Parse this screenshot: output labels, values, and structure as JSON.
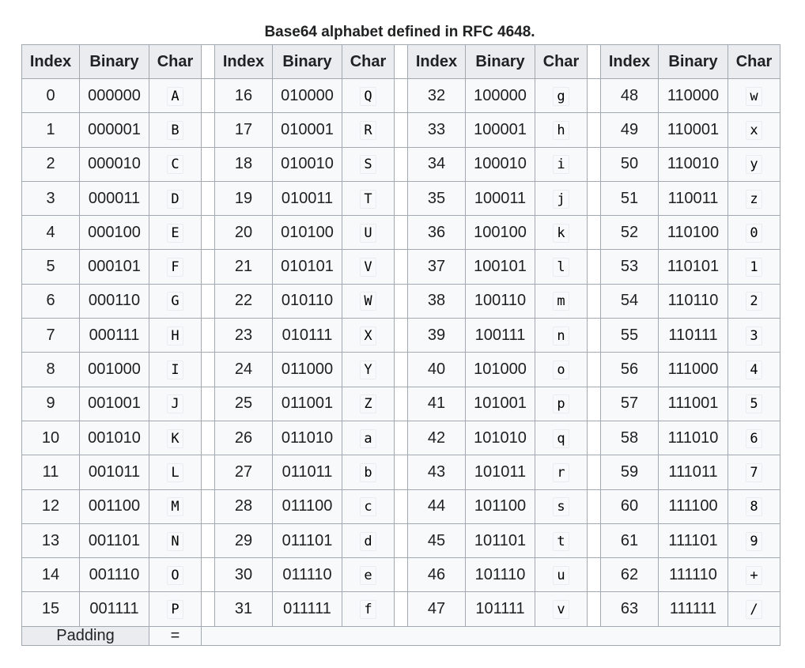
{
  "caption": "Base64 alphabet defined in RFC 4648.",
  "headers": {
    "index": "Index",
    "binary": "Binary",
    "char": "Char"
  },
  "rows": [
    [
      [
        "0",
        "000000",
        "A"
      ],
      [
        "16",
        "010000",
        "Q"
      ],
      [
        "32",
        "100000",
        "g"
      ],
      [
        "48",
        "110000",
        "w"
      ]
    ],
    [
      [
        "1",
        "000001",
        "B"
      ],
      [
        "17",
        "010001",
        "R"
      ],
      [
        "33",
        "100001",
        "h"
      ],
      [
        "49",
        "110001",
        "x"
      ]
    ],
    [
      [
        "2",
        "000010",
        "C"
      ],
      [
        "18",
        "010010",
        "S"
      ],
      [
        "34",
        "100010",
        "i"
      ],
      [
        "50",
        "110010",
        "y"
      ]
    ],
    [
      [
        "3",
        "000011",
        "D"
      ],
      [
        "19",
        "010011",
        "T"
      ],
      [
        "35",
        "100011",
        "j"
      ],
      [
        "51",
        "110011",
        "z"
      ]
    ],
    [
      [
        "4",
        "000100",
        "E"
      ],
      [
        "20",
        "010100",
        "U"
      ],
      [
        "36",
        "100100",
        "k"
      ],
      [
        "52",
        "110100",
        "0"
      ]
    ],
    [
      [
        "5",
        "000101",
        "F"
      ],
      [
        "21",
        "010101",
        "V"
      ],
      [
        "37",
        "100101",
        "l"
      ],
      [
        "53",
        "110101",
        "1"
      ]
    ],
    [
      [
        "6",
        "000110",
        "G"
      ],
      [
        "22",
        "010110",
        "W"
      ],
      [
        "38",
        "100110",
        "m"
      ],
      [
        "54",
        "110110",
        "2"
      ]
    ],
    [
      [
        "7",
        "000111",
        "H"
      ],
      [
        "23",
        "010111",
        "X"
      ],
      [
        "39",
        "100111",
        "n"
      ],
      [
        "55",
        "110111",
        "3"
      ]
    ],
    [
      [
        "8",
        "001000",
        "I"
      ],
      [
        "24",
        "011000",
        "Y"
      ],
      [
        "40",
        "101000",
        "o"
      ],
      [
        "56",
        "111000",
        "4"
      ]
    ],
    [
      [
        "9",
        "001001",
        "J"
      ],
      [
        "25",
        "011001",
        "Z"
      ],
      [
        "41",
        "101001",
        "p"
      ],
      [
        "57",
        "111001",
        "5"
      ]
    ],
    [
      [
        "10",
        "001010",
        "K"
      ],
      [
        "26",
        "011010",
        "a"
      ],
      [
        "42",
        "101010",
        "q"
      ],
      [
        "58",
        "111010",
        "6"
      ]
    ],
    [
      [
        "11",
        "001011",
        "L"
      ],
      [
        "27",
        "011011",
        "b"
      ],
      [
        "43",
        "101011",
        "r"
      ],
      [
        "59",
        "111011",
        "7"
      ]
    ],
    [
      [
        "12",
        "001100",
        "M"
      ],
      [
        "28",
        "011100",
        "c"
      ],
      [
        "44",
        "101100",
        "s"
      ],
      [
        "60",
        "111100",
        "8"
      ]
    ],
    [
      [
        "13",
        "001101",
        "N"
      ],
      [
        "29",
        "011101",
        "d"
      ],
      [
        "45",
        "101101",
        "t"
      ],
      [
        "61",
        "111101",
        "9"
      ]
    ],
    [
      [
        "14",
        "001110",
        "O"
      ],
      [
        "30",
        "011110",
        "e"
      ],
      [
        "46",
        "101110",
        "u"
      ],
      [
        "62",
        "111110",
        "+"
      ]
    ],
    [
      [
        "15",
        "001111",
        "P"
      ],
      [
        "31",
        "011111",
        "f"
      ],
      [
        "47",
        "101111",
        "v"
      ],
      [
        "63",
        "111111",
        "/"
      ]
    ]
  ],
  "padding": {
    "label": "Padding",
    "char": "="
  }
}
